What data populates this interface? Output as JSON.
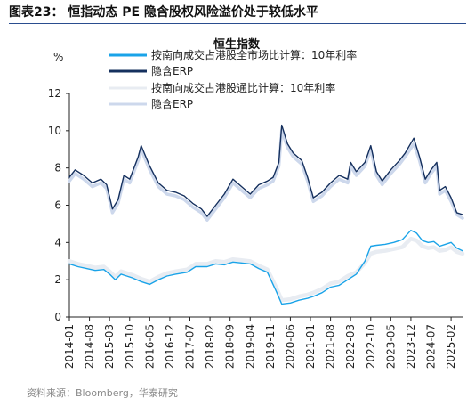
{
  "figure": {
    "title": "图表23： 恒指动态 PE 隐含股权风险溢价处于较低水平",
    "source": "资料来源：Bloomberg，华泰研究"
  },
  "chart_data": {
    "type": "line",
    "title": "恒生指数",
    "ylabel": "%",
    "ylim": [
      0,
      12
    ],
    "yticks": [
      "0",
      "2",
      "4",
      "6",
      "8",
      "10",
      "12"
    ],
    "x_range": [
      "2014-01",
      "2025-06"
    ],
    "xticks": [
      "2014-01",
      "2014-08",
      "2015-03",
      "2015-10",
      "2016-05",
      "2016-12",
      "2017-07",
      "2018-02",
      "2018-09",
      "2019-04",
      "2019-11",
      "2020-06",
      "2021-01",
      "2021-08",
      "2022-03",
      "2022-10",
      "2023-05",
      "2023-12",
      "2024-07",
      "2025-02"
    ],
    "legend_position": "top",
    "series": [
      {
        "name": "按南向成交占港股全市场比计算：10年利率",
        "color": "#1aa3e8",
        "points": [
          [
            "2014-01",
            2.85
          ],
          [
            "2014-04",
            2.7
          ],
          [
            "2014-07",
            2.6
          ],
          [
            "2014-10",
            2.5
          ],
          [
            "2015-01",
            2.55
          ],
          [
            "2015-03",
            2.3
          ],
          [
            "2015-05",
            2.0
          ],
          [
            "2015-07",
            2.3
          ],
          [
            "2015-09",
            2.2
          ],
          [
            "2015-11",
            2.1
          ],
          [
            "2016-02",
            1.9
          ],
          [
            "2016-05",
            1.75
          ],
          [
            "2016-08",
            2.0
          ],
          [
            "2016-11",
            2.2
          ],
          [
            "2017-02",
            2.3
          ],
          [
            "2017-06",
            2.4
          ],
          [
            "2017-09",
            2.7
          ],
          [
            "2018-01",
            2.7
          ],
          [
            "2018-04",
            2.85
          ],
          [
            "2018-07",
            2.8
          ],
          [
            "2018-10",
            2.95
          ],
          [
            "2019-01",
            2.9
          ],
          [
            "2019-04",
            2.85
          ],
          [
            "2019-07",
            2.6
          ],
          [
            "2019-10",
            2.4
          ],
          [
            "2020-01",
            1.4
          ],
          [
            "2020-03",
            0.7
          ],
          [
            "2020-06",
            0.75
          ],
          [
            "2020-09",
            0.9
          ],
          [
            "2020-12",
            1.0
          ],
          [
            "2021-02",
            1.1
          ],
          [
            "2021-05",
            1.3
          ],
          [
            "2021-08",
            1.6
          ],
          [
            "2021-11",
            1.7
          ],
          [
            "2022-02",
            2.0
          ],
          [
            "2022-05",
            2.3
          ],
          [
            "2022-08",
            3.0
          ],
          [
            "2022-10",
            3.8
          ],
          [
            "2022-12",
            3.85
          ],
          [
            "2023-03",
            3.9
          ],
          [
            "2023-06",
            4.0
          ],
          [
            "2023-09",
            4.15
          ],
          [
            "2023-12",
            4.65
          ],
          [
            "2024-02",
            4.5
          ],
          [
            "2024-04",
            4.1
          ],
          [
            "2024-06",
            4.0
          ],
          [
            "2024-08",
            4.05
          ],
          [
            "2024-10",
            3.8
          ],
          [
            "2024-12",
            3.9
          ],
          [
            "2025-02",
            4.0
          ],
          [
            "2025-04",
            3.7
          ],
          [
            "2025-06",
            3.55
          ]
        ]
      },
      {
        "name": "隐含ERP",
        "color": "#15305e",
        "points": [
          [
            "2014-01",
            7.5
          ],
          [
            "2014-03",
            7.9
          ],
          [
            "2014-06",
            7.6
          ],
          [
            "2014-09",
            7.2
          ],
          [
            "2014-12",
            7.4
          ],
          [
            "2015-02",
            7.1
          ],
          [
            "2015-04",
            5.8
          ],
          [
            "2015-06",
            6.3
          ],
          [
            "2015-08",
            7.6
          ],
          [
            "2015-10",
            7.4
          ],
          [
            "2016-01",
            8.6
          ],
          [
            "2016-02",
            9.2
          ],
          [
            "2016-05",
            8.1
          ],
          [
            "2016-08",
            7.2
          ],
          [
            "2016-11",
            6.8
          ],
          [
            "2017-02",
            6.7
          ],
          [
            "2017-05",
            6.5
          ],
          [
            "2017-08",
            6.1
          ],
          [
            "2017-11",
            5.8
          ],
          [
            "2018-01",
            5.4
          ],
          [
            "2018-04",
            6.0
          ],
          [
            "2018-07",
            6.6
          ],
          [
            "2018-10",
            7.4
          ],
          [
            "2019-01",
            7.0
          ],
          [
            "2019-04",
            6.6
          ],
          [
            "2019-07",
            7.1
          ],
          [
            "2019-10",
            7.3
          ],
          [
            "2019-12",
            7.5
          ],
          [
            "2020-02",
            8.3
          ],
          [
            "2020-03",
            10.3
          ],
          [
            "2020-05",
            9.3
          ],
          [
            "2020-07",
            8.8
          ],
          [
            "2020-10",
            8.4
          ],
          [
            "2020-12",
            7.5
          ],
          [
            "2021-02",
            6.4
          ],
          [
            "2021-05",
            6.7
          ],
          [
            "2021-08",
            7.2
          ],
          [
            "2021-11",
            7.6
          ],
          [
            "2022-02",
            7.4
          ],
          [
            "2022-03",
            8.3
          ],
          [
            "2022-05",
            7.8
          ],
          [
            "2022-08",
            8.3
          ],
          [
            "2022-10",
            9.2
          ],
          [
            "2022-12",
            7.8
          ],
          [
            "2023-02",
            7.3
          ],
          [
            "2023-05",
            7.9
          ],
          [
            "2023-08",
            8.4
          ],
          [
            "2023-10",
            8.8
          ],
          [
            "2024-01",
            9.6
          ],
          [
            "2024-03",
            8.6
          ],
          [
            "2024-05",
            7.4
          ],
          [
            "2024-07",
            7.9
          ],
          [
            "2024-09",
            8.3
          ],
          [
            "2024-10",
            6.8
          ],
          [
            "2024-12",
            7.0
          ],
          [
            "2025-02",
            6.4
          ],
          [
            "2025-04",
            5.6
          ],
          [
            "2025-06",
            5.5
          ]
        ]
      },
      {
        "name": "按南向成交占港股通比计算：10年利率",
        "color": "#e8ecf2",
        "points": [
          [
            "2014-01",
            3.0
          ],
          [
            "2014-04",
            2.85
          ],
          [
            "2014-07",
            2.75
          ],
          [
            "2014-10",
            2.65
          ],
          [
            "2015-01",
            2.7
          ],
          [
            "2015-03",
            2.45
          ],
          [
            "2015-05",
            2.15
          ],
          [
            "2015-07",
            2.45
          ],
          [
            "2015-09",
            2.35
          ],
          [
            "2015-11",
            2.25
          ],
          [
            "2016-02",
            2.05
          ],
          [
            "2016-05",
            1.9
          ],
          [
            "2016-08",
            2.15
          ],
          [
            "2016-11",
            2.35
          ],
          [
            "2017-02",
            2.45
          ],
          [
            "2017-06",
            2.55
          ],
          [
            "2017-09",
            2.85
          ],
          [
            "2018-01",
            2.85
          ],
          [
            "2018-04",
            3.0
          ],
          [
            "2018-07",
            2.95
          ],
          [
            "2018-10",
            3.1
          ],
          [
            "2019-01",
            3.05
          ],
          [
            "2019-04",
            3.0
          ],
          [
            "2019-07",
            2.75
          ],
          [
            "2019-10",
            2.55
          ],
          [
            "2020-01",
            1.6
          ],
          [
            "2020-03",
            0.9
          ],
          [
            "2020-06",
            0.95
          ],
          [
            "2020-09",
            1.1
          ],
          [
            "2020-12",
            1.2
          ],
          [
            "2021-02",
            1.3
          ],
          [
            "2021-05",
            1.5
          ],
          [
            "2021-08",
            1.8
          ],
          [
            "2021-11",
            1.9
          ],
          [
            "2022-02",
            2.2
          ],
          [
            "2022-05",
            2.4
          ],
          [
            "2022-08",
            2.9
          ],
          [
            "2022-10",
            3.4
          ],
          [
            "2022-12",
            3.5
          ],
          [
            "2023-03",
            3.55
          ],
          [
            "2023-06",
            3.65
          ],
          [
            "2023-09",
            3.75
          ],
          [
            "2023-12",
            4.2
          ],
          [
            "2024-02",
            4.1
          ],
          [
            "2024-04",
            3.8
          ],
          [
            "2024-06",
            3.7
          ],
          [
            "2024-08",
            3.75
          ],
          [
            "2024-10",
            3.55
          ],
          [
            "2024-12",
            3.6
          ],
          [
            "2025-02",
            3.75
          ],
          [
            "2025-04",
            3.5
          ],
          [
            "2025-06",
            3.4
          ]
        ]
      },
      {
        "name": "隐含ERP",
        "color": "#cdd8ec",
        "points": [
          [
            "2014-01",
            7.3
          ],
          [
            "2014-03",
            7.7
          ],
          [
            "2014-06",
            7.4
          ],
          [
            "2014-09",
            7.0
          ],
          [
            "2014-12",
            7.2
          ],
          [
            "2015-02",
            6.9
          ],
          [
            "2015-04",
            5.6
          ],
          [
            "2015-06",
            6.1
          ],
          [
            "2015-08",
            7.4
          ],
          [
            "2015-10",
            7.2
          ],
          [
            "2016-01",
            8.4
          ],
          [
            "2016-02",
            9.0
          ],
          [
            "2016-05",
            7.9
          ],
          [
            "2016-08",
            7.0
          ],
          [
            "2016-11",
            6.6
          ],
          [
            "2017-02",
            6.5
          ],
          [
            "2017-05",
            6.3
          ],
          [
            "2017-08",
            5.9
          ],
          [
            "2017-11",
            5.6
          ],
          [
            "2018-01",
            5.2
          ],
          [
            "2018-04",
            5.8
          ],
          [
            "2018-07",
            6.4
          ],
          [
            "2018-10",
            7.2
          ],
          [
            "2019-01",
            6.8
          ],
          [
            "2019-04",
            6.4
          ],
          [
            "2019-07",
            6.9
          ],
          [
            "2019-10",
            7.1
          ],
          [
            "2019-12",
            7.3
          ],
          [
            "2020-02",
            8.1
          ],
          [
            "2020-03",
            10.0
          ],
          [
            "2020-05",
            9.1
          ],
          [
            "2020-07",
            8.6
          ],
          [
            "2020-10",
            8.2
          ],
          [
            "2020-12",
            7.3
          ],
          [
            "2021-02",
            6.2
          ],
          [
            "2021-05",
            6.5
          ],
          [
            "2021-08",
            7.0
          ],
          [
            "2021-11",
            7.4
          ],
          [
            "2022-02",
            7.2
          ],
          [
            "2022-03",
            8.1
          ],
          [
            "2022-05",
            7.6
          ],
          [
            "2022-08",
            8.1
          ],
          [
            "2022-10",
            9.0
          ],
          [
            "2022-12",
            7.6
          ],
          [
            "2023-02",
            7.1
          ],
          [
            "2023-05",
            7.7
          ],
          [
            "2023-08",
            8.2
          ],
          [
            "2023-10",
            8.6
          ],
          [
            "2024-01",
            9.3
          ],
          [
            "2024-03",
            8.4
          ],
          [
            "2024-05",
            7.2
          ],
          [
            "2024-07",
            7.7
          ],
          [
            "2024-09",
            8.1
          ],
          [
            "2024-10",
            6.6
          ],
          [
            "2024-12",
            6.8
          ],
          [
            "2025-02",
            6.2
          ],
          [
            "2025-04",
            5.5
          ],
          [
            "2025-06",
            5.3
          ]
        ]
      }
    ]
  }
}
